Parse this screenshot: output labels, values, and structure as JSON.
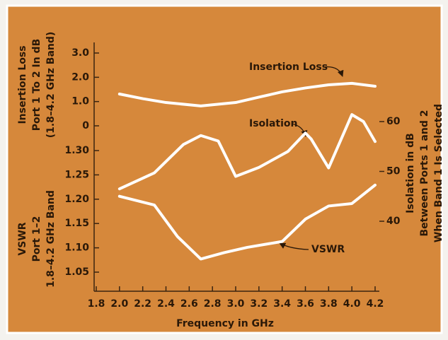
{
  "chart_data": {
    "type": "line",
    "xlabel": "Frequency in GHz",
    "xlim": [
      1.8,
      4.2
    ],
    "xticks": [
      1.8,
      {
        "value": 2,
        "label": "2.0"
      },
      2.2,
      2.4,
      2.6,
      2.8,
      {
        "value": 3,
        "label": "3.0"
      },
      3.2,
      3.4,
      3.6,
      3.8,
      {
        "value": 4,
        "label": "4.0"
      },
      4.2
    ],
    "ylabel": [
      "Insertion Loss",
      "Port 1 To 2  In dB",
      "(1.8–4.2 GHz Band)"
    ],
    "ylim": [
      0,
      3
    ],
    "yticks": [
      {
        "value": 3,
        "label": "3.0"
      },
      {
        "value": 2,
        "label": "2.0"
      },
      {
        "value": 1,
        "label": "1.0"
      },
      0
    ],
    "y3label": [
      "VSWR",
      "Port 1–2",
      "1.8–4.2 GHz Band"
    ],
    "y3lim": [
      1.05,
      1.3
    ],
    "y3ticks": [
      {
        "value": 1.3,
        "label": "1.30"
      },
      1.25,
      {
        "value": 1.2,
        "label": "1.20"
      },
      1.15,
      {
        "value": 1.1,
        "label": "1.10"
      },
      1.05
    ],
    "y2label": [
      "Isolation in dB",
      "Between Ports 1 and 2",
      "When Band 1 Is Selected"
    ],
    "y2lim": [
      40,
      60
    ],
    "y2ticks": [
      60,
      50,
      40
    ],
    "series": [
      {
        "name": "Insertion Loss",
        "color": "#ffffff",
        "axis": "y",
        "x": [
          2.0,
          2.2,
          2.4,
          2.7,
          3.0,
          3.2,
          3.4,
          3.6,
          3.8,
          4.0,
          4.2
        ],
        "values": [
          1.31,
          1.12,
          0.96,
          0.82,
          0.96,
          1.18,
          1.4,
          1.56,
          1.69,
          1.75,
          1.63
        ]
      },
      {
        "name": "Isolation",
        "color": "#ffffff",
        "axis": "y2",
        "x": [
          2.0,
          2.3,
          2.55,
          2.7,
          2.85,
          3.0,
          3.2,
          3.45,
          3.6,
          3.65,
          3.8,
          4.0,
          4.1,
          4.2
        ],
        "values": [
          46.5,
          49.7,
          55.4,
          57.2,
          56.1,
          49.0,
          50.8,
          54.0,
          57.7,
          56.5,
          50.7,
          61.4,
          60.0,
          56.0
        ]
      },
      {
        "name": "VSWR",
        "color": "#ffffff",
        "axis": "y3",
        "x": [
          2.0,
          2.3,
          2.5,
          2.7,
          2.9,
          3.1,
          3.4,
          3.6,
          3.8,
          4.0,
          4.2
        ],
        "values": [
          1.206,
          1.188,
          1.123,
          1.077,
          1.09,
          1.101,
          1.113,
          1.159,
          1.186,
          1.191,
          1.229
        ]
      }
    ]
  }
}
